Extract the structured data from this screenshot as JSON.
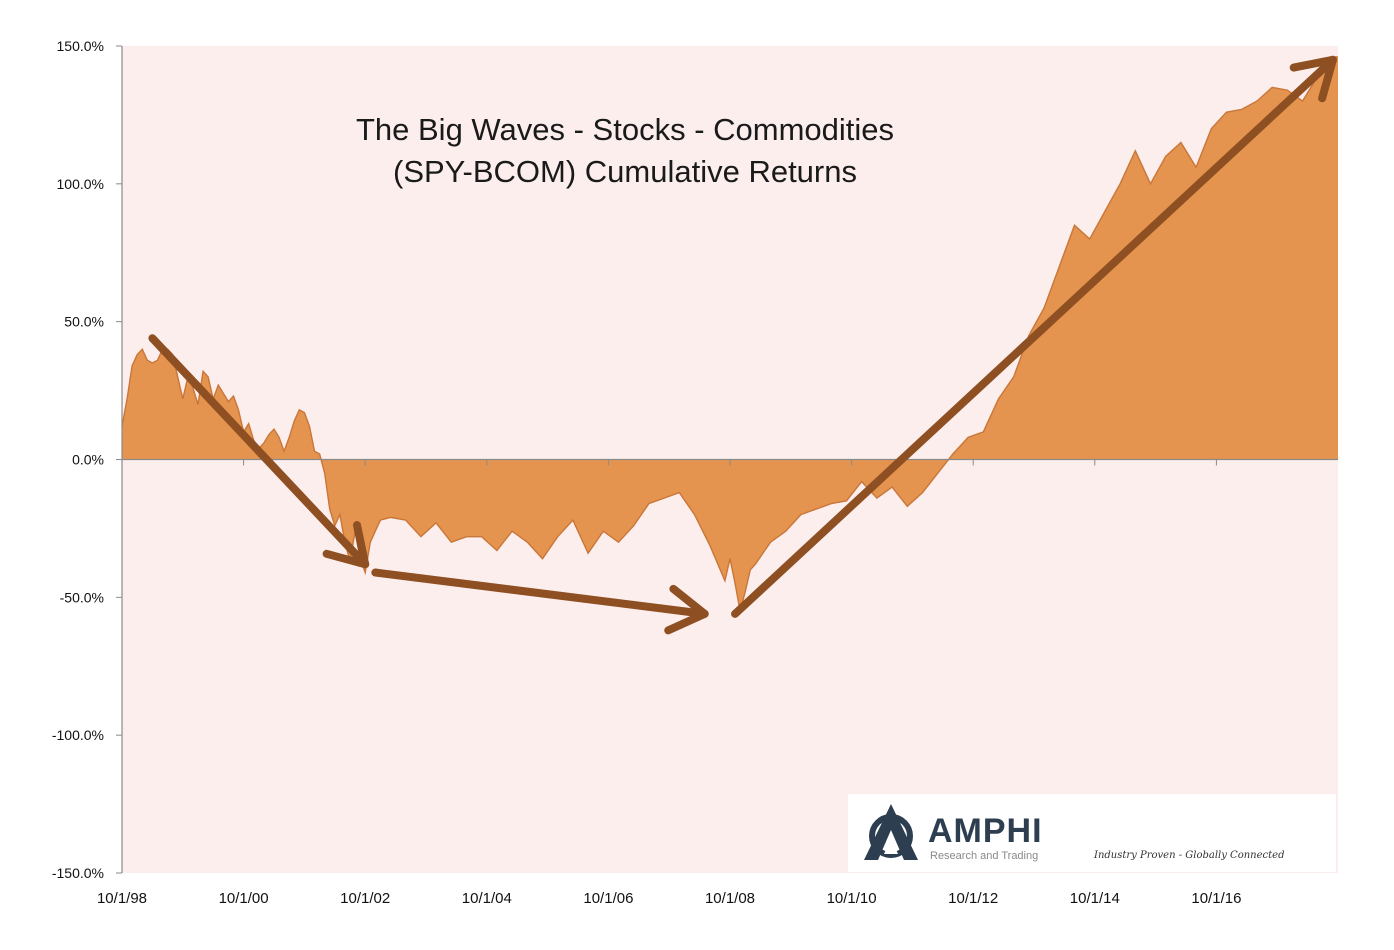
{
  "chart_data": {
    "type": "area",
    "title_lines": [
      "The Big Waves - Stocks - Commodities",
      "(SPY-BCOM) Cumulative Returns"
    ],
    "x_tick_labels": [
      "10/1/98",
      "10/1/00",
      "10/1/02",
      "10/1/04",
      "10/1/06",
      "10/1/08",
      "10/1/10",
      "10/1/12",
      "10/1/14",
      "10/1/16"
    ],
    "y_tick_labels": [
      "150.0%",
      "100.0%",
      "50.0%",
      "0.0%",
      "-50.0%",
      "-100.0%",
      "-150.0%"
    ],
    "ylim": [
      -150,
      150
    ],
    "xlim": [
      "1998-10-01",
      "2018-10-01"
    ],
    "grid": false,
    "colors": {
      "fill": "#e4944e",
      "stroke": "#c9763a",
      "plot_bg": "#fbeeec",
      "arrow": "#8e4f22"
    },
    "series": [
      {
        "x": [
          "1998-10",
          "1998-11",
          "1998-12",
          "1999-01",
          "1999-02",
          "1999-03",
          "1999-04",
          "1999-05",
          "1999-06",
          "1999-07",
          "1999-08",
          "1999-09",
          "1999-10",
          "1999-11",
          "1999-12",
          "2000-01",
          "2000-02",
          "2000-03",
          "2000-04",
          "2000-05",
          "2000-06",
          "2000-07",
          "2000-08",
          "2000-09",
          "2000-10",
          "2000-11",
          "2000-12",
          "2001-01",
          "2001-02",
          "2001-03",
          "2001-04",
          "2001-05",
          "2001-06",
          "2001-07",
          "2001-08",
          "2001-09",
          "2001-10",
          "2001-11",
          "2001-12",
          "2002-01",
          "2002-02",
          "2002-03",
          "2002-04",
          "2002-05",
          "2002-06",
          "2002-07",
          "2002-08",
          "2002-09",
          "2002-10",
          "2002-11",
          "2002-12",
          "2003-01",
          "2003-03",
          "2003-06",
          "2003-09",
          "2003-12",
          "2004-03",
          "2004-06",
          "2004-09",
          "2004-12",
          "2005-03",
          "2005-06",
          "2005-09",
          "2005-12",
          "2006-03",
          "2006-06",
          "2006-09",
          "2006-12",
          "2007-03",
          "2007-06",
          "2007-09",
          "2007-12",
          "2008-03",
          "2008-06",
          "2008-09",
          "2008-10",
          "2008-11",
          "2008-12",
          "2009-01",
          "2009-02",
          "2009-03",
          "2009-06",
          "2009-09",
          "2009-12",
          "2010-03",
          "2010-06",
          "2010-09",
          "2010-12",
          "2011-03",
          "2011-06",
          "2011-09",
          "2011-12",
          "2012-03",
          "2012-06",
          "2012-09",
          "2012-12",
          "2013-03",
          "2013-06",
          "2013-09",
          "2013-12",
          "2014-03",
          "2014-06",
          "2014-09",
          "2014-12",
          "2015-03",
          "2015-06",
          "2015-09",
          "2015-12",
          "2016-03",
          "2016-06",
          "2016-09",
          "2016-12",
          "2017-03",
          "2017-06",
          "2017-09",
          "2017-12",
          "2018-03",
          "2018-06",
          "2018-09",
          "2018-10"
        ],
        "y": [
          12,
          22,
          34,
          38,
          40,
          36,
          35,
          36,
          40,
          40,
          38,
          30,
          22,
          30,
          26,
          20,
          32,
          30,
          22,
          27,
          24,
          21,
          23,
          18,
          10,
          13,
          7,
          4,
          6,
          9,
          11,
          8,
          3,
          8,
          14,
          18,
          17,
          12,
          3,
          2,
          -5,
          -18,
          -24,
          -20,
          -30,
          -37,
          -26,
          -36,
          -41,
          -30,
          -26,
          -22,
          -21,
          -22,
          -28,
          -23,
          -30,
          -28,
          -28,
          -33,
          -26,
          -30,
          -36,
          -28,
          -22,
          -34,
          -26,
          -30,
          -24,
          -16,
          -14,
          -12,
          -20,
          -31,
          -44,
          -36,
          -45,
          -55,
          -48,
          -40,
          -38,
          -30,
          -26,
          -20,
          -18,
          -16,
          -15,
          -8,
          -14,
          -10,
          -17,
          -12,
          -5,
          2,
          8,
          10,
          22,
          30,
          45,
          55,
          70,
          85,
          80,
          90,
          100,
          112,
          100,
          110,
          115,
          106,
          120,
          126,
          127,
          130,
          135,
          134,
          130,
          139,
          146,
          146
        ]
      }
    ],
    "annotations": {
      "arrows": [
        {
          "from": [
            "1999-04",
            44
          ],
          "to": [
            "2002-10",
            -38
          ]
        },
        {
          "from": [
            "2002-12",
            -41
          ],
          "to": [
            "2008-05",
            -56
          ]
        },
        {
          "from": [
            "2008-11",
            -56
          ],
          "to": [
            "2018-09",
            145
          ]
        }
      ]
    },
    "logo": {
      "name": "AMPHI",
      "subtitle": "Research and Trading",
      "tagline": "Industry Proven - Globally Connected"
    }
  }
}
